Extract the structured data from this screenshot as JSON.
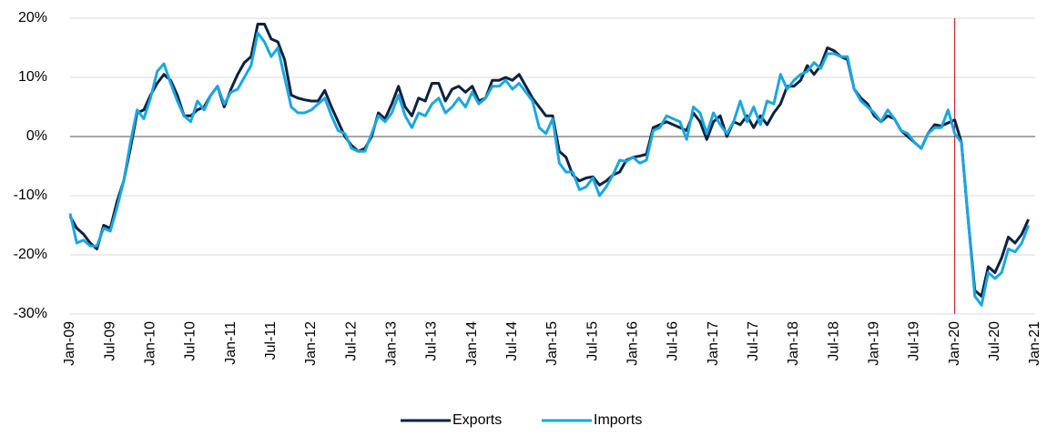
{
  "chart_data": {
    "type": "line",
    "categories": [
      "Jan-09",
      null,
      null,
      null,
      null,
      null,
      "Jul-09",
      null,
      null,
      null,
      null,
      null,
      "Jan-10",
      null,
      null,
      null,
      null,
      null,
      "Jul-10",
      null,
      null,
      null,
      null,
      null,
      "Jan-11",
      null,
      null,
      null,
      null,
      null,
      "Jul-11",
      null,
      null,
      null,
      null,
      null,
      "Jan-12",
      null,
      null,
      null,
      null,
      null,
      "Jul-12",
      null,
      null,
      null,
      null,
      null,
      "Jan-13",
      null,
      null,
      null,
      null,
      null,
      "Jul-13",
      null,
      null,
      null,
      null,
      null,
      "Jan-14",
      null,
      null,
      null,
      null,
      null,
      "Jul-14",
      null,
      null,
      null,
      null,
      null,
      "Jan-15",
      null,
      null,
      null,
      null,
      null,
      "Jul-15",
      null,
      null,
      null,
      null,
      null,
      "Jan-16",
      null,
      null,
      null,
      null,
      null,
      "Jul-16",
      null,
      null,
      null,
      null,
      null,
      "Jan-17",
      null,
      null,
      null,
      null,
      null,
      "Jul-17",
      null,
      null,
      null,
      null,
      null,
      "Jan-18",
      null,
      null,
      null,
      null,
      null,
      "Jul-18",
      null,
      null,
      null,
      null,
      null,
      "Jan-19",
      null,
      null,
      null,
      null,
      null,
      "Jul-19",
      null,
      null,
      null,
      null,
      null,
      "Jan-20",
      null,
      null,
      null,
      null,
      null,
      "Jul-20",
      null,
      null,
      null,
      null,
      null,
      "Jan-21"
    ],
    "series": [
      {
        "name": "Exports",
        "color": "#0b2240",
        "values": [
          -13.5,
          -15.5,
          -16.5,
          -18,
          -19,
          -15,
          -15.5,
          -11,
          -7.5,
          -2,
          4,
          4.5,
          7,
          9,
          10.5,
          9.5,
          7,
          3.5,
          3.5,
          4.5,
          5,
          7,
          8.5,
          5,
          8,
          10.5,
          12.5,
          13.5,
          19,
          19,
          16.5,
          16,
          13,
          7,
          6.5,
          6.2,
          6,
          6,
          7.8,
          5,
          2.5,
          0,
          -1.5,
          -2.5,
          -2,
          0,
          4,
          3,
          5.5,
          8.5,
          5,
          3.5,
          6.5,
          6,
          9,
          9,
          6,
          8,
          8.5,
          7.5,
          8.5,
          6,
          6.5,
          9.5,
          9.5,
          10,
          9.5,
          10.5,
          8.5,
          6.5,
          5,
          3.5,
          3.5,
          -2.5,
          -3.5,
          -6.5,
          -7.5,
          -7,
          -6.8,
          -8.2,
          -7.5,
          -6.5,
          -6,
          -4,
          -3.5,
          -3.3,
          -3,
          1.5,
          2,
          2.5,
          2,
          1.5,
          1,
          4,
          2.5,
          -0.5,
          2.5,
          3.5,
          0,
          2.5,
          2,
          3.5,
          1.5,
          3.5,
          2,
          4,
          5.5,
          8.5,
          8.5,
          9.5,
          12,
          10.5,
          12,
          15,
          14.5,
          13.5,
          13,
          8,
          6.5,
          5.5,
          3.5,
          2.5,
          3.5,
          3,
          1,
          0,
          -1,
          -2,
          0.5,
          2,
          1.8,
          2.3,
          2.8,
          -1,
          -14,
          -26,
          -27,
          -22,
          -23,
          -20.5,
          -17,
          -18,
          -16.5,
          -14,
          null
        ]
      },
      {
        "name": "Imports",
        "color": "#1aa7e0",
        "values": [
          -13,
          -18,
          -17.5,
          -18.5,
          -18.5,
          -15.5,
          -16,
          -12,
          -7.5,
          -1,
          4.5,
          3,
          6.5,
          11,
          12.3,
          9,
          6,
          3.5,
          2.5,
          6,
          4.5,
          7,
          8.5,
          5.5,
          7.5,
          8,
          10,
          12,
          17.5,
          16,
          13.5,
          15,
          10,
          5,
          4,
          4,
          4.5,
          5.5,
          6.5,
          3.5,
          1,
          0.5,
          -2,
          -2.5,
          -2.5,
          0.5,
          3.5,
          2.5,
          4,
          7,
          3.5,
          1.5,
          4,
          3.5,
          5.5,
          6.5,
          4,
          5,
          6.5,
          5,
          7.5,
          5.5,
          6.5,
          8.5,
          8.5,
          9.5,
          8,
          9,
          7.5,
          6,
          1.5,
          0.5,
          3,
          -4.5,
          -6,
          -6,
          -9,
          -8.5,
          -7,
          -10,
          -8.5,
          -6.5,
          -4,
          -4.2,
          -3.5,
          -4.5,
          -4,
          1,
          1.5,
          3.5,
          3,
          2.5,
          -0.5,
          5,
          4,
          0.5,
          4,
          2,
          0.5,
          2.5,
          6,
          2.5,
          5,
          2,
          6,
          5.5,
          10.5,
          8,
          9.5,
          10.5,
          11,
          12.5,
          11.5,
          14,
          14,
          13.5,
          13.5,
          8,
          6,
          5,
          4,
          2.5,
          4.5,
          3,
          1,
          0.5,
          -1,
          -2,
          0.5,
          1.5,
          1.5,
          4.5,
          0.5,
          -1,
          -14,
          -27,
          -28.5,
          -23,
          -24,
          -23,
          -19,
          -19.5,
          -18,
          -15,
          null
        ]
      }
    ],
    "ylim": [
      -30,
      20
    ],
    "yticks": [
      {
        "value": -30,
        "label": "-30%"
      },
      {
        "value": -20,
        "label": "-20%"
      },
      {
        "value": -10,
        "label": "-10%"
      },
      {
        "value": 0,
        "label": "0%"
      },
      {
        "value": 10,
        "label": "10%"
      },
      {
        "value": 20,
        "label": "20%"
      }
    ],
    "grid": true,
    "vline": "Jan-20",
    "vline_color": "#c00000",
    "legend": "bottom"
  }
}
